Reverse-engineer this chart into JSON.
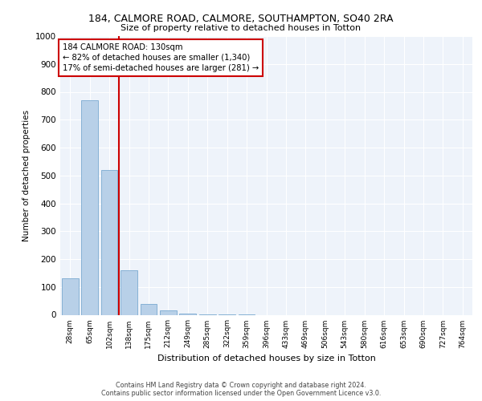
{
  "title1": "184, CALMORE ROAD, CALMORE, SOUTHAMPTON, SO40 2RA",
  "title2": "Size of property relative to detached houses in Totton",
  "xlabel": "Distribution of detached houses by size in Totton",
  "ylabel": "Number of detached properties",
  "bar_labels": [
    "28sqm",
    "65sqm",
    "102sqm",
    "138sqm",
    "175sqm",
    "212sqm",
    "249sqm",
    "285sqm",
    "322sqm",
    "359sqm",
    "396sqm",
    "433sqm",
    "469sqm",
    "506sqm",
    "543sqm",
    "580sqm",
    "616sqm",
    "653sqm",
    "690sqm",
    "727sqm",
    "764sqm"
  ],
  "bar_values": [
    130,
    770,
    520,
    160,
    40,
    15,
    5,
    2,
    1,
    1,
    0,
    0,
    0,
    0,
    0,
    0,
    0,
    0,
    0,
    0,
    0
  ],
  "bar_color": "#b8d0e8",
  "annotation_line1": "184 CALMORE ROAD: 130sqm",
  "annotation_line2": "← 82% of detached houses are smaller (1,340)",
  "annotation_line3": "17% of semi-detached houses are larger (281) →",
  "vline_color": "#cc0000",
  "vline_x": 2.5,
  "ylim": [
    0,
    1000
  ],
  "yticks": [
    0,
    100,
    200,
    300,
    400,
    500,
    600,
    700,
    800,
    900,
    1000
  ],
  "footer1": "Contains HM Land Registry data © Crown copyright and database right 2024.",
  "footer2": "Contains public sector information licensed under the Open Government Licence v3.0."
}
